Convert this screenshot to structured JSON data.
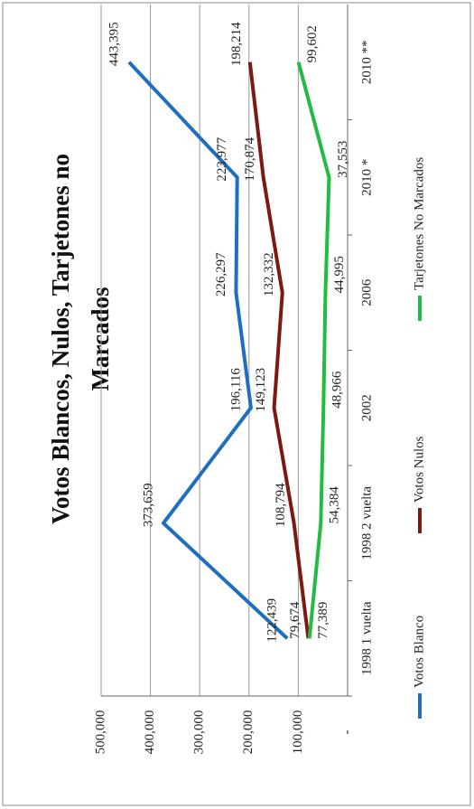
{
  "chart_data": {
    "type": "line",
    "title": "Votos Blancos, Nulos, Tarjetones no Marcados",
    "categories": [
      "1998 1 vuelta",
      "1998 2 vuelta",
      "2002",
      "2006",
      "2010 *",
      "2010 **"
    ],
    "series": [
      {
        "name": "Votos Blanco",
        "color": "#1f6fbf",
        "values": [
          122439,
          373659,
          196116,
          226297,
          223977,
          443395
        ],
        "value_labels": [
          "122,439",
          "373,659",
          "196,116",
          "226,297",
          "223,977",
          "443,395"
        ]
      },
      {
        "name": "Votos Nulos",
        "color": "#7b1a12",
        "values": [
          79674,
          108794,
          149123,
          132332,
          170874,
          198214
        ],
        "value_labels": [
          "79,674",
          "108,794",
          "149,123",
          "132,332",
          "170,874",
          "198,214"
        ]
      },
      {
        "name": "Tarjetones No Marcados",
        "color": "#22bb44",
        "values": [
          77389,
          54384,
          48966,
          44995,
          37553,
          99602
        ],
        "value_labels": [
          "77,389",
          "54,384",
          "48,966",
          "44,995",
          "37,553",
          "99,602"
        ]
      }
    ],
    "ylim": [
      0,
      500000
    ],
    "yticks": [
      {
        "value": 0,
        "label": "-"
      },
      {
        "value": 100000,
        "label": "100,000"
      },
      {
        "value": 200000,
        "label": "200,000"
      },
      {
        "value": 300000,
        "label": "300,000"
      },
      {
        "value": 400000,
        "label": "400,000"
      },
      {
        "value": 500000,
        "label": "500,000"
      }
    ],
    "grid": true
  }
}
